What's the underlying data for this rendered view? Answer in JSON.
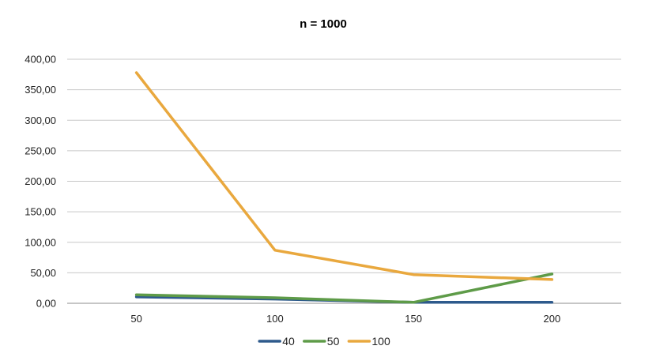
{
  "chart_data": {
    "type": "line",
    "title": "n = 1000",
    "xlabel": "",
    "ylabel": "",
    "categories": [
      "50",
      "100",
      "150",
      "200"
    ],
    "ylim": [
      0,
      400
    ],
    "yticks": [
      0,
      50,
      100,
      150,
      200,
      250,
      300,
      350,
      400
    ],
    "ytick_labels": [
      "0,00",
      "50,00",
      "100,00",
      "150,00",
      "200,00",
      "250,00",
      "300,00",
      "350,00",
      "400,00"
    ],
    "grid": true,
    "legend_position": "bottom",
    "series": [
      {
        "name": "40",
        "color": "#2E5A8C",
        "values": [
          10.5,
          7,
          1.5,
          1.5
        ]
      },
      {
        "name": "50",
        "color": "#5E9B48",
        "values": [
          14,
          9,
          1.5,
          48
        ]
      },
      {
        "name": "100",
        "color": "#E9A83E",
        "values": [
          378,
          87,
          47,
          39
        ]
      }
    ]
  }
}
